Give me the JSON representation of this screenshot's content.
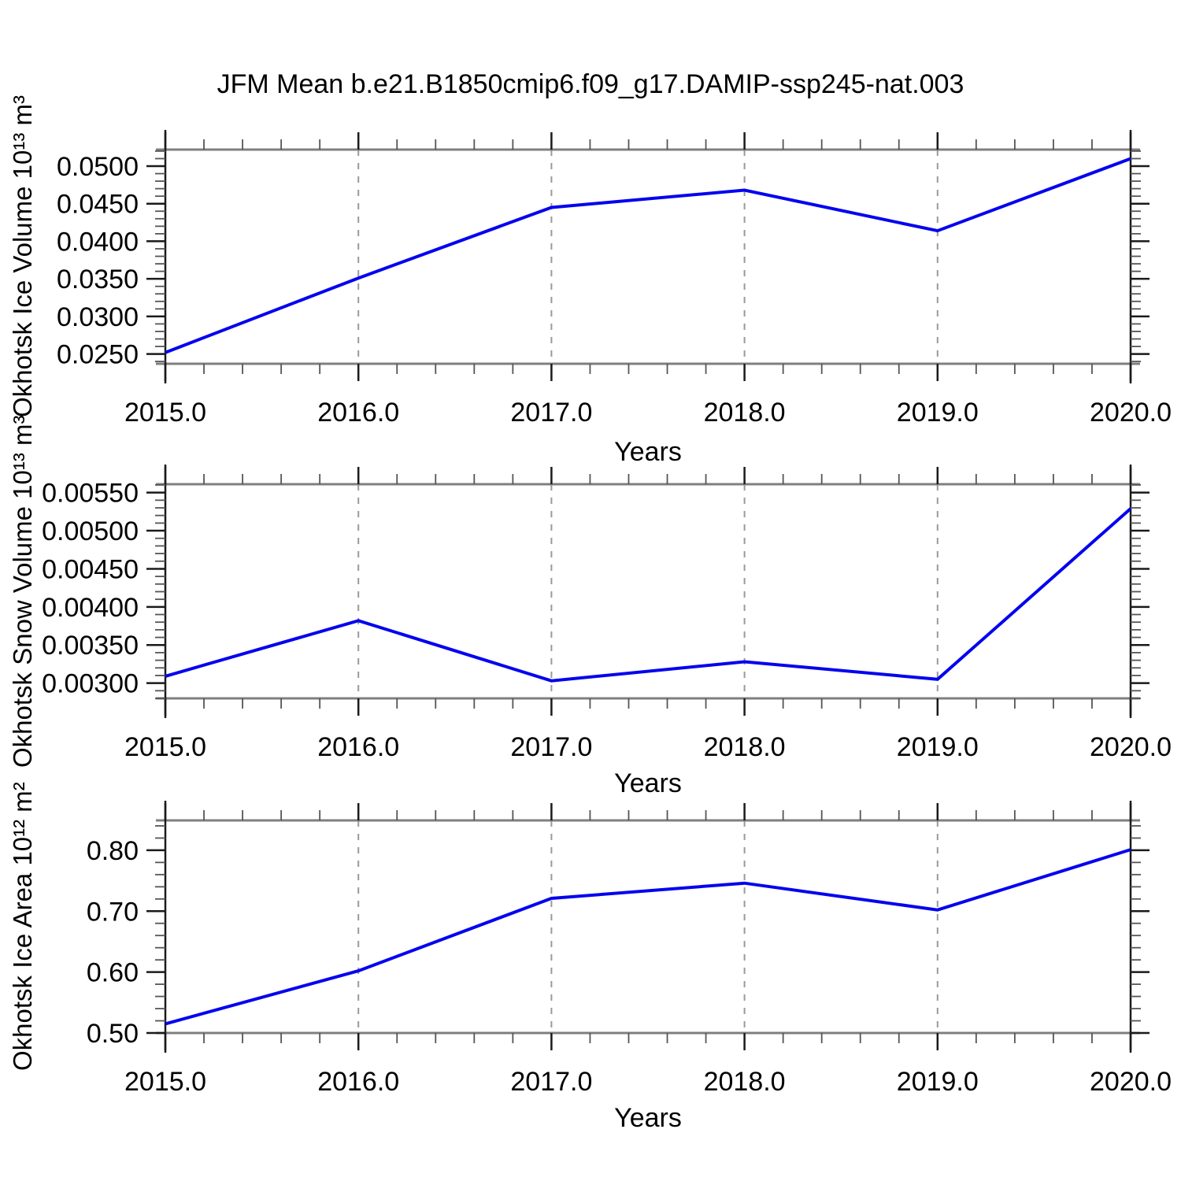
{
  "title": "JFM Mean b.e21.B1850cmip6.f09_g17.DAMIP-ssp245-nat.003",
  "style": {
    "line_color": "#0404ee",
    "border_color": "#7f7f7f",
    "spine_color": "#1a1a1a",
    "major_tick_color": "#1a1a1a",
    "minor_tick_color": "#555555",
    "grid_color": "#9a9a9a",
    "text_color": "#000000"
  },
  "chart_data": [
    {
      "type": "line",
      "title": "",
      "ylabel": "Okhotsk Ice Volume 10¹³ m³",
      "xlabel": "Years",
      "x": [
        2015,
        2016,
        2017,
        2018,
        2019,
        2020
      ],
      "y": [
        0.0252,
        0.0351,
        0.0445,
        0.0468,
        0.0414,
        0.051
      ],
      "xlim": [
        2015,
        2020
      ],
      "ylim": [
        0.0237,
        0.0522
      ],
      "xticks": [
        2015,
        2016,
        2017,
        2018,
        2019,
        2020
      ],
      "xtick_labels": [
        "2015.0",
        "2016.0",
        "2017.0",
        "2018.0",
        "2019.0",
        "2020.0"
      ],
      "yticks": [
        0.025,
        0.03,
        0.035,
        0.04,
        0.045,
        0.05
      ],
      "ytick_labels": [
        "0.0250",
        "0.0300",
        "0.0350",
        "0.0400",
        "0.0450",
        "0.0500"
      ],
      "x_minor_step": 0.2,
      "y_minor_step": 0.001,
      "grid_x": [
        2016,
        2017,
        2018,
        2019
      ],
      "grid_style": "dashed",
      "legend": "none"
    },
    {
      "type": "line",
      "title": "",
      "ylabel": "Okhotsk Snow Volume 10¹³ m³",
      "xlabel": "Years",
      "x": [
        2015,
        2016,
        2017,
        2018,
        2019,
        2020
      ],
      "y": [
        0.00309,
        0.00382,
        0.00303,
        0.00328,
        0.00305,
        0.00529
      ],
      "xlim": [
        2015,
        2020
      ],
      "ylim": [
        0.0028,
        0.00561
      ],
      "xticks": [
        2015,
        2016,
        2017,
        2018,
        2019,
        2020
      ],
      "xtick_labels": [
        "2015.0",
        "2016.0",
        "2017.0",
        "2018.0",
        "2019.0",
        "2020.0"
      ],
      "yticks": [
        0.003,
        0.0035,
        0.004,
        0.0045,
        0.005,
        0.0055
      ],
      "ytick_labels": [
        "0.00300",
        "0.00350",
        "0.00400",
        "0.00450",
        "0.00500",
        "0.00550"
      ],
      "x_minor_step": 0.2,
      "y_minor_step": 0.0001,
      "grid_x": [
        2016,
        2017,
        2018,
        2019
      ],
      "grid_style": "dashed",
      "legend": "none"
    },
    {
      "type": "line",
      "title": "",
      "ylabel": "Okhotsk Ice Area 10¹² m²",
      "xlabel": "Years",
      "x": [
        2015,
        2016,
        2017,
        2018,
        2019,
        2020
      ],
      "y": [
        0.515,
        0.602,
        0.721,
        0.746,
        0.702,
        0.801
      ],
      "xlim": [
        2015,
        2020
      ],
      "ylim": [
        0.5,
        0.849
      ],
      "xticks": [
        2015,
        2016,
        2017,
        2018,
        2019,
        2020
      ],
      "xtick_labels": [
        "2015.0",
        "2016.0",
        "2017.0",
        "2018.0",
        "2019.0",
        "2020.0"
      ],
      "yticks": [
        0.5,
        0.6,
        0.7,
        0.8
      ],
      "ytick_labels": [
        "0.50",
        "0.60",
        "0.70",
        "0.80"
      ],
      "x_minor_step": 0.2,
      "y_minor_step": 0.02,
      "grid_x": [
        2016,
        2017,
        2018,
        2019
      ],
      "grid_style": "dashed",
      "legend": "none"
    }
  ]
}
